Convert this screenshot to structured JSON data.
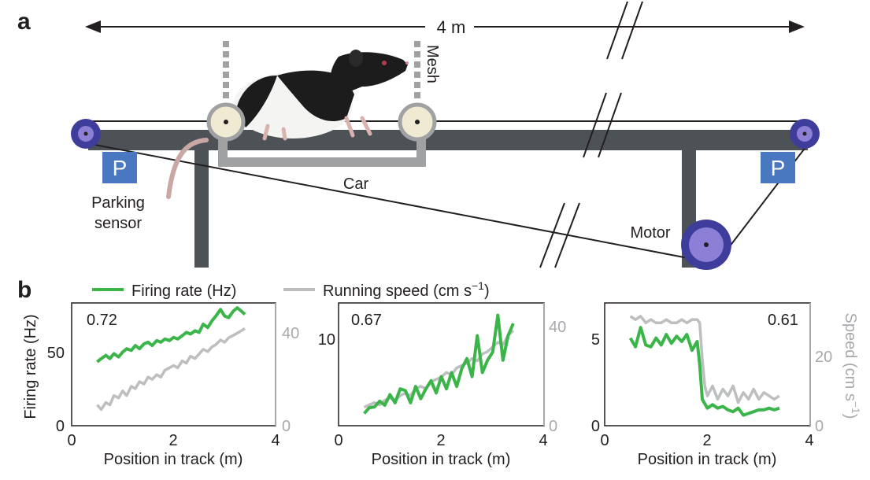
{
  "panel_a": {
    "label": "a",
    "distance_label": "4 m",
    "mesh_label": "Mesh",
    "car_label": "Car",
    "parking_sensor_label_line1": "Parking",
    "parking_sensor_label_line2": "sensor",
    "parking_sign_left": "P",
    "parking_sign_right": "P",
    "motor_label": "Motor",
    "colors": {
      "rail": "#4d5257",
      "pulley": "#3f3d9c",
      "pulley_inner": "#8e7fd6",
      "wheel": "#f1ead2",
      "car": "#9fa1a3",
      "sign": "#4a78c0"
    }
  },
  "panel_b": {
    "label": "b",
    "legend": [
      {
        "label": "Firing rate (Hz)",
        "color": "#3bb54a"
      },
      {
        "label": "Running speed (cm s−1)",
        "color": "#bcbec0"
      }
    ]
  },
  "chart_data": [
    {
      "type": "line",
      "annotation": "0.72",
      "xlabel": "Position in track (m)",
      "ylabel": "Firing rate (Hz)",
      "xlim": [
        0,
        4
      ],
      "xticks": [
        "0",
        "2",
        "4"
      ],
      "ylim": [
        0,
        75
      ],
      "yticks": [
        "0",
        "50"
      ],
      "y2lim": [
        0,
        53
      ],
      "y2ticks": [
        "0",
        "40"
      ],
      "series": [
        {
          "axis": "left",
          "color": "#3bb54a",
          "x": [
            0.5,
            0.58,
            0.67,
            0.75,
            0.83,
            0.92,
            1.0,
            1.08,
            1.17,
            1.25,
            1.33,
            1.42,
            1.5,
            1.58,
            1.67,
            1.75,
            1.83,
            1.92,
            2.0,
            2.08,
            2.17,
            2.25,
            2.33,
            2.42,
            2.5,
            2.58,
            2.67,
            2.75,
            2.83,
            2.92,
            3.0,
            3.08,
            3.17,
            3.25,
            3.33,
            3.4
          ],
          "values": [
            39,
            41,
            43,
            41,
            44,
            42,
            45,
            47,
            46,
            49,
            47,
            50,
            51,
            49,
            52,
            51,
            53,
            52,
            54,
            53,
            55,
            57,
            56,
            58,
            57,
            62,
            60,
            64,
            67,
            71,
            67,
            66,
            70,
            72,
            70,
            68
          ]
        },
        {
          "axis": "right",
          "color": "#bcbec0",
          "x": [
            0.5,
            0.58,
            0.67,
            0.75,
            0.83,
            0.92,
            1.0,
            1.08,
            1.17,
            1.25,
            1.33,
            1.42,
            1.5,
            1.58,
            1.67,
            1.75,
            1.83,
            1.92,
            2.0,
            2.08,
            2.17,
            2.25,
            2.33,
            2.42,
            2.5,
            2.58,
            2.67,
            2.75,
            2.83,
            2.92,
            3.0,
            3.08,
            3.17,
            3.25,
            3.33,
            3.4
          ],
          "values": [
            9,
            7,
            10,
            9,
            13,
            12,
            15,
            13,
            17,
            16,
            19,
            18,
            21,
            20,
            22,
            21,
            24,
            25,
            26,
            25,
            28,
            27,
            30,
            29,
            31,
            33,
            32,
            34,
            35,
            37,
            36,
            38,
            39,
            40,
            41,
            42
          ]
        }
      ]
    },
    {
      "type": "line",
      "annotation": "0.67",
      "xlabel": "Position in track (m)",
      "xlim": [
        0,
        4
      ],
      "xticks": [
        "0",
        "2",
        "4"
      ],
      "ylim": [
        0,
        15
      ],
      "yticks": [
        "10"
      ],
      "y2lim": [
        0,
        53
      ],
      "y2ticks": [
        "0",
        "40"
      ],
      "series": [
        {
          "axis": "left",
          "color": "#3bb54a",
          "x": [
            0.5,
            0.6,
            0.7,
            0.8,
            0.9,
            1.0,
            1.1,
            1.2,
            1.3,
            1.4,
            1.5,
            1.6,
            1.7,
            1.8,
            1.9,
            2.0,
            2.1,
            2.2,
            2.3,
            2.4,
            2.5,
            2.6,
            2.7,
            2.8,
            2.9,
            3.0,
            3.1,
            3.2,
            3.3,
            3.4
          ],
          "values": [
            1.5,
            2.2,
            2.3,
            3.0,
            2.5,
            3.8,
            2.8,
            4.5,
            4.3,
            2.8,
            4.8,
            3.3,
            4.5,
            5.5,
            4.0,
            6.0,
            4.5,
            6.5,
            4.8,
            7.0,
            8.2,
            6.0,
            11.0,
            6.5,
            8.0,
            9.0,
            13.5,
            8.0,
            11.0,
            12.5
          ]
        },
        {
          "axis": "right",
          "color": "#bcbec0",
          "x": [
            0.5,
            0.6,
            0.7,
            0.8,
            0.9,
            1.0,
            1.1,
            1.2,
            1.3,
            1.4,
            1.5,
            1.6,
            1.7,
            1.8,
            1.9,
            2.0,
            2.1,
            2.2,
            2.3,
            2.4,
            2.5,
            2.6,
            2.7,
            2.8,
            2.9,
            3.0,
            3.1,
            3.2,
            3.3,
            3.4
          ],
          "values": [
            8,
            9,
            10,
            9,
            11,
            12,
            11,
            13,
            14,
            13,
            16,
            17,
            16,
            19,
            20,
            21,
            23,
            22,
            25,
            26,
            27,
            29,
            28,
            31,
            32,
            34,
            36,
            35,
            39,
            41
          ]
        }
      ]
    },
    {
      "type": "line",
      "annotation": "0.61",
      "xlabel": "Position in track (m)",
      "xlim": [
        0,
        4
      ],
      "xticks": [
        "0",
        "2",
        "4"
      ],
      "ylim": [
        0,
        7
      ],
      "yticks": [
        "0",
        "5"
      ],
      "y2lim": [
        0,
        37
      ],
      "y2ticks": [
        "0",
        "20"
      ],
      "y2label": "Speed (cm s−1)",
      "series": [
        {
          "axis": "left",
          "color": "#3bb54a",
          "x": [
            0.5,
            0.6,
            0.7,
            0.8,
            0.9,
            1.0,
            1.1,
            1.2,
            1.3,
            1.4,
            1.5,
            1.6,
            1.7,
            1.8,
            1.85,
            1.9,
            2.0,
            2.1,
            2.2,
            2.3,
            2.4,
            2.5,
            2.6,
            2.7,
            2.8,
            2.9,
            3.0,
            3.1,
            3.2,
            3.3,
            3.4
          ],
          "values": [
            5.0,
            4.5,
            5.6,
            4.6,
            4.5,
            5.0,
            4.6,
            5.2,
            4.7,
            5.1,
            4.8,
            5.2,
            4.3,
            4.8,
            3.5,
            1.5,
            1.0,
            1.2,
            1.0,
            1.1,
            0.9,
            0.8,
            1.0,
            0.6,
            0.7,
            0.8,
            0.9,
            0.9,
            1.0,
            0.9,
            1.0
          ]
        },
        {
          "axis": "right",
          "color": "#bcbec0",
          "x": [
            0.5,
            0.6,
            0.7,
            0.8,
            0.9,
            1.0,
            1.1,
            1.2,
            1.3,
            1.4,
            1.5,
            1.6,
            1.7,
            1.8,
            1.85,
            1.9,
            1.95,
            2.0,
            2.1,
            2.2,
            2.3,
            2.4,
            2.5,
            2.6,
            2.7,
            2.8,
            2.9,
            3.0,
            3.1,
            3.2,
            3.3,
            3.4
          ],
          "values": [
            33,
            32,
            33,
            31,
            32,
            31,
            31,
            32,
            31,
            31,
            32,
            31,
            32,
            32,
            31,
            20,
            12,
            9,
            12,
            8,
            11,
            9,
            12,
            7,
            10,
            8,
            11,
            8,
            10,
            9,
            8,
            9
          ]
        }
      ]
    }
  ]
}
